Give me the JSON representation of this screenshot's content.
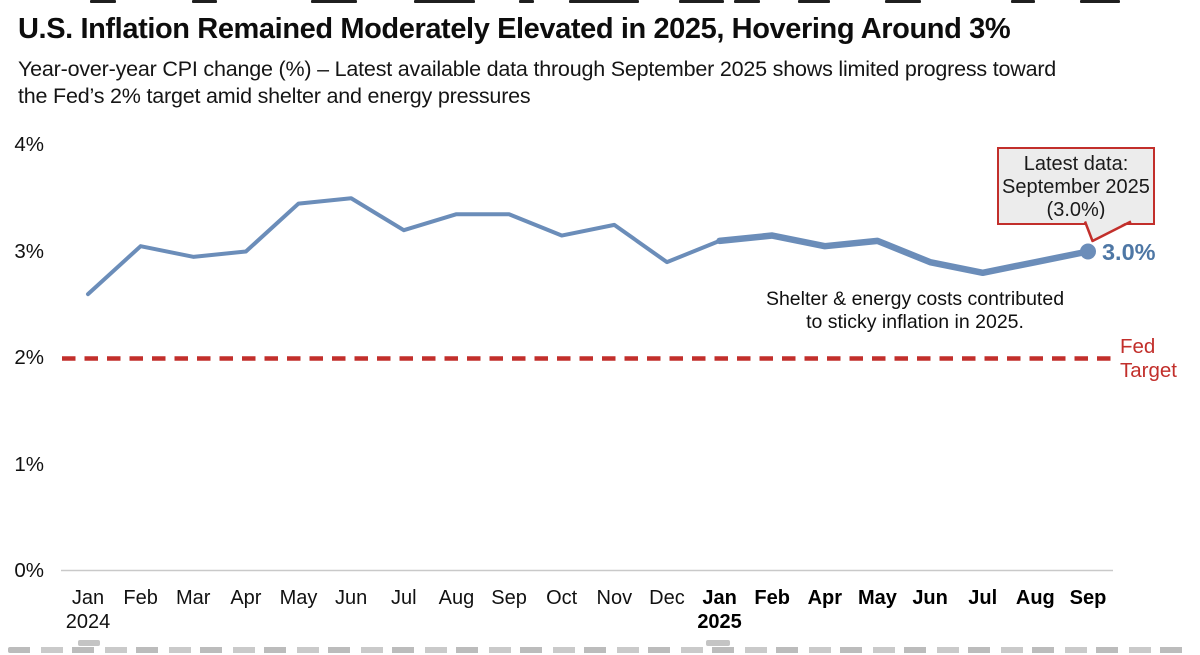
{
  "page": {
    "title": "U.S. Inflation Remained Moderately Elevated in 2025, Hovering Around 3%",
    "subtitle_line1": "Year-over-year CPI change (%) – Latest available data through September 2025 shows limited progress toward",
    "subtitle_line2": "the Fed’s 2% target amid shelter and energy pressures"
  },
  "chart_data": {
    "type": "line",
    "title": "U.S. Inflation Remained Moderately Elevated in 2025, Hovering Around 3%",
    "subtitle": "Year-over-year CPI change (%) – Latest available data through September 2025 shows limited progress toward the Fed’s 2% target amid shelter and energy pressures",
    "ylabel": "Year-over-year CPI change (%)",
    "xlabel": "",
    "ylim": [
      0,
      4
    ],
    "grid": "off",
    "legend": "none",
    "y_ticks": [
      {
        "label": "0%",
        "value": 0
      },
      {
        "label": "1%",
        "value": 1
      },
      {
        "label": "2%",
        "value": 2
      },
      {
        "label": "3%",
        "value": 3
      },
      {
        "label": "4%",
        "value": 4
      }
    ],
    "categories": [
      {
        "label": "Jan",
        "year": "2024",
        "bold": false
      },
      {
        "label": "Feb",
        "bold": false
      },
      {
        "label": "Mar",
        "bold": false
      },
      {
        "label": "Apr",
        "bold": false
      },
      {
        "label": "May",
        "bold": false
      },
      {
        "label": "Jun",
        "bold": false
      },
      {
        "label": "Jul",
        "bold": false
      },
      {
        "label": "Aug",
        "bold": false
      },
      {
        "label": "Sep",
        "bold": false
      },
      {
        "label": "Oct",
        "bold": false
      },
      {
        "label": "Nov",
        "bold": false
      },
      {
        "label": "Dec",
        "bold": false
      },
      {
        "label": "Jan",
        "year": "2025",
        "bold": true
      },
      {
        "label": "Feb",
        "bold": true
      },
      {
        "label": "Apr",
        "bold": true
      },
      {
        "label": "May",
        "bold": true
      },
      {
        "label": "Jun",
        "bold": true
      },
      {
        "label": "Jul",
        "bold": true
      },
      {
        "label": "Aug",
        "bold": true
      },
      {
        "label": "Sep",
        "bold": true
      }
    ],
    "series": [
      {
        "name": "CPI year-over-year change (%)",
        "values": [
          2.6,
          3.05,
          2.95,
          3.0,
          3.45,
          3.5,
          3.2,
          3.35,
          3.35,
          3.15,
          3.25,
          2.9,
          3.1,
          3.15,
          3.05,
          3.1,
          2.9,
          2.8,
          2.9,
          3.0
        ]
      }
    ],
    "emphasis_start_index": 12,
    "fed_target": {
      "value": 2,
      "label_line1": "Fed",
      "label_line2": "Target"
    },
    "last_point": {
      "label": "3.0%",
      "value": 3.0
    },
    "callout": {
      "line1": "Latest data:",
      "line2": "September 2025",
      "line3": "(3.0%)"
    },
    "note": {
      "line1": "Shelter & energy costs contributed",
      "line2": "to sticky inflation in 2025."
    }
  },
  "colors": {
    "line_blue": "#6b8db9",
    "point_label_blue": "#4e77a5",
    "target_red": "#c22f2b",
    "callout_bg": "#ececec",
    "axis_gray": "#c9c9c9",
    "text_dark": "#111111"
  }
}
